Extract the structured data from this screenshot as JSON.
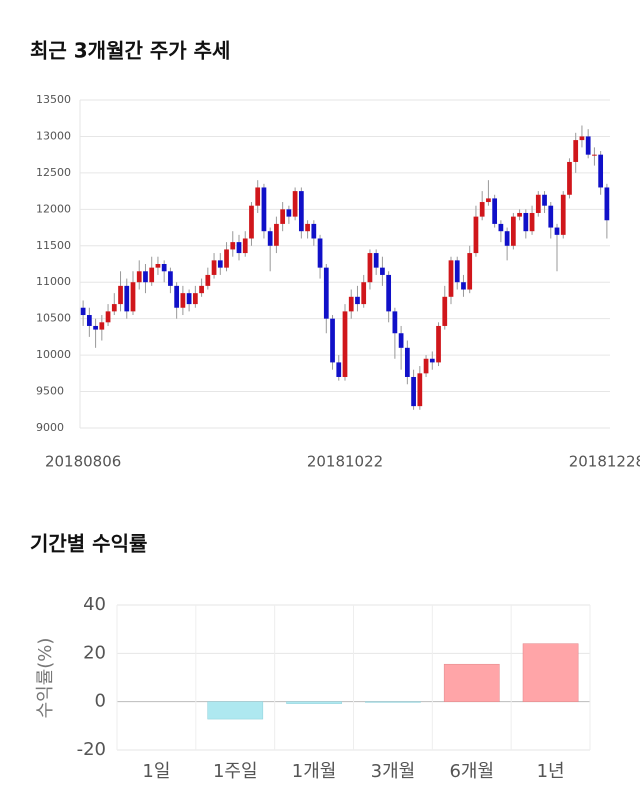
{
  "chart_data": [
    {
      "type": "candlestick",
      "title": "최근 3개월간 주가 추세",
      "categories": [
        "20180806",
        null,
        null,
        null,
        null,
        null,
        null,
        null,
        null,
        null,
        null,
        null,
        null,
        null,
        null,
        null,
        null,
        null,
        null,
        null,
        null,
        null,
        null,
        null,
        null,
        null,
        null,
        null,
        null,
        null,
        null,
        null,
        null,
        null,
        null,
        null,
        null,
        null,
        null,
        null,
        null,
        null,
        "20181022",
        null,
        null,
        null,
        null,
        null,
        null,
        null,
        null,
        null,
        null,
        null,
        null,
        null,
        null,
        null,
        null,
        null,
        null,
        null,
        null,
        null,
        null,
        null,
        null,
        null,
        null,
        null,
        null,
        null,
        null,
        null,
        null,
        null,
        null,
        null,
        null,
        null,
        null,
        null,
        null,
        null,
        "20181228"
      ],
      "open": [
        10650,
        10550,
        10400,
        10350,
        10450,
        10600,
        10700,
        10950,
        10600,
        11000,
        11150,
        11000,
        11200,
        11250,
        11150,
        10950,
        10650,
        10850,
        10700,
        10850,
        10950,
        11100,
        11300,
        11200,
        11450,
        11550,
        11400,
        11600,
        12050,
        12300,
        11700,
        11500,
        11800,
        12000,
        11900,
        12250,
        11700,
        11800,
        11600,
        11200,
        10500,
        9900,
        9700,
        10600,
        10800,
        10700,
        11000,
        11400,
        11200,
        11100,
        10600,
        10300,
        10100,
        9700,
        9300,
        9750,
        9950,
        9900,
        10400,
        10800,
        11300,
        11000,
        10900,
        11400,
        11900,
        12100,
        12150,
        11800,
        11700,
        11500,
        11900,
        11950,
        11700,
        11950,
        12200,
        12050,
        11750,
        11650,
        12200,
        12650,
        12950,
        13000,
        12750,
        12750,
        12300
      ],
      "high": [
        10750,
        10650,
        10500,
        10550,
        10700,
        10850,
        11150,
        11050,
        11150,
        11300,
        11250,
        11350,
        11350,
        11300,
        11200,
        11000,
        10950,
        10900,
        10950,
        11050,
        11200,
        11400,
        11400,
        11550,
        11700,
        11650,
        11700,
        12100,
        12400,
        12350,
        11750,
        11900,
        12100,
        12050,
        12300,
        12300,
        11850,
        11850,
        11650,
        11250,
        10550,
        10000,
        10700,
        10900,
        10950,
        11100,
        11450,
        11450,
        11350,
        11150,
        10650,
        10400,
        10200,
        9800,
        9850,
        10000,
        10050,
        10450,
        10950,
        11350,
        11350,
        11100,
        11500,
        12050,
        12250,
        12400,
        12200,
        11850,
        11750,
        11950,
        12000,
        12000,
        12050,
        12250,
        12250,
        12100,
        11800,
        12250,
        12700,
        13050,
        13150,
        13100,
        12850,
        12800,
        12350
      ],
      "low": [
        10400,
        10250,
        10100,
        10200,
        10400,
        10550,
        10600,
        10500,
        10550,
        10900,
        10850,
        10950,
        11100,
        11000,
        10850,
        10500,
        10550,
        10600,
        10650,
        10800,
        10900,
        11050,
        11100,
        11150,
        11350,
        11300,
        11350,
        11500,
        11950,
        11600,
        11150,
        11400,
        11700,
        11800,
        11850,
        11600,
        11600,
        11500,
        11050,
        10300,
        9800,
        9650,
        9650,
        10500,
        10600,
        10650,
        10900,
        11100,
        10950,
        10450,
        9950,
        9800,
        9600,
        9250,
        9250,
        9700,
        9800,
        9850,
        10350,
        10700,
        10900,
        10800,
        10850,
        11350,
        11850,
        12050,
        11750,
        11550,
        11300,
        11450,
        11850,
        11600,
        11650,
        11900,
        11950,
        11600,
        11150,
        11600,
        12150,
        12500,
        12850,
        12700,
        12600,
        12200,
        11600
      ],
      "close": [
        10550,
        10400,
        10350,
        10450,
        10600,
        10700,
        10950,
        10600,
        11000,
        11150,
        11000,
        11200,
        11250,
        11150,
        10950,
        10650,
        10850,
        10700,
        10850,
        10950,
        11100,
        11300,
        11200,
        11450,
        11550,
        11400,
        11600,
        12050,
        12300,
        11700,
        11500,
        11800,
        12000,
        11900,
        12250,
        11700,
        11800,
        11600,
        11200,
        10500,
        9900,
        9700,
        10600,
        10800,
        10700,
        11000,
        11400,
        11200,
        11100,
        10600,
        10300,
        10100,
        9700,
        9300,
        9750,
        9950,
        9900,
        10400,
        10800,
        11300,
        11000,
        10900,
        11400,
        11900,
        12100,
        12150,
        11800,
        11700,
        11500,
        11900,
        11950,
        11700,
        11950,
        12200,
        12050,
        11750,
        11650,
        12200,
        12650,
        12950,
        13000,
        12750,
        12750,
        12300,
        11850
      ],
      "color_up": "#d0161b",
      "color_down": "#1010c8",
      "ylim": [
        9000,
        13500
      ],
      "yticks": [
        9000,
        9500,
        10000,
        10500,
        11000,
        11500,
        12000,
        12500,
        13000,
        13500
      ],
      "grid": true
    },
    {
      "type": "bar",
      "title": "기간별 수익률",
      "y_label": "수익률(%)",
      "categories": [
        "1일",
        "1주일",
        "1개월",
        "3개월",
        "6개월",
        "1년"
      ],
      "values": [
        0,
        -7.2,
        -0.8,
        -0.3,
        15.5,
        24
      ],
      "color_up": "#ffa5a8",
      "color_down": "#aee8f0",
      "ylim": [
        -20,
        40
      ],
      "yticks": [
        -20,
        0,
        20,
        40
      ],
      "grid": true
    }
  ]
}
